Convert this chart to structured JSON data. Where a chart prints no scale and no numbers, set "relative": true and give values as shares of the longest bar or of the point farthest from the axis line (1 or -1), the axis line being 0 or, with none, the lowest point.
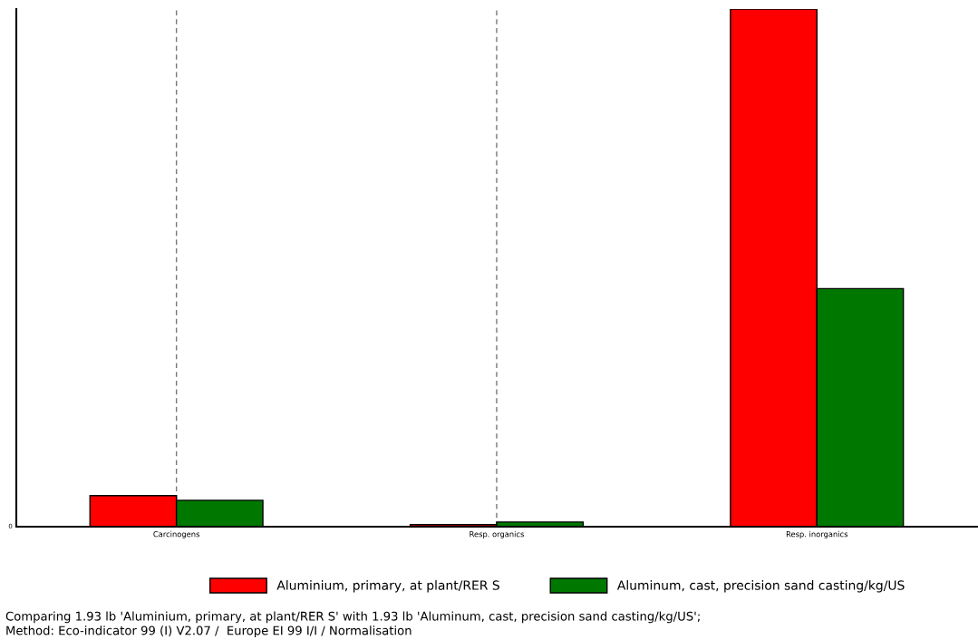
{
  "chart_data": {
    "type": "bar",
    "relative": true,
    "categories": [
      "Carcinogens",
      "Resp. organics",
      "Resp. inorganics"
    ],
    "series": [
      {
        "name": "Aluminium, primary, at plant/RER S",
        "color": "#ff0000",
        "values": [
          0.06,
          0.004,
          1
        ]
      },
      {
        "name": "Aluminum, cast, precision sand casting/kg/US",
        "color": "#007800",
        "values": [
          0.051,
          0.009,
          0.46
        ]
      }
    ],
    "grid": "x",
    "legend": "bottom",
    "annotations": [
      "0",
      "Comparing 1.93 lb 'Aluminium, primary, at plant/RER S' with 1.93 lb 'Aluminum, cast, precision sand casting/kg/US';\nMethod: Eco-indicator 99 (I) V2.07 /  Europe EI 99 I/I / Normalisation"
    ]
  }
}
